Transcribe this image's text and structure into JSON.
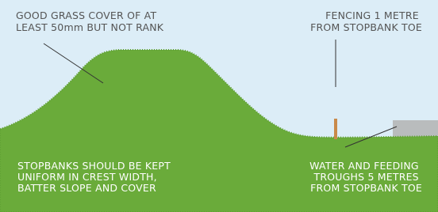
{
  "callouts": [
    {
      "lines": [
        "GOOD GRASS COVER OF AT",
        "LEAST 50mm BUT NOT RANK"
      ]
    },
    {
      "lines": [
        "FENCING 1 METRE",
        "FROM STOPBANK TOE"
      ]
    },
    {
      "lines": [
        "STOPBANKS SHOULD BE KEPT",
        "UNIFORM IN CREST WIDTH,",
        "BATTER SLOPE AND COVER"
      ]
    },
    {
      "lines": [
        "WATER AND FEEDING",
        "TROUGHS  5 METRES",
        "FROM STOPBANK TOE"
      ]
    }
  ]
}
